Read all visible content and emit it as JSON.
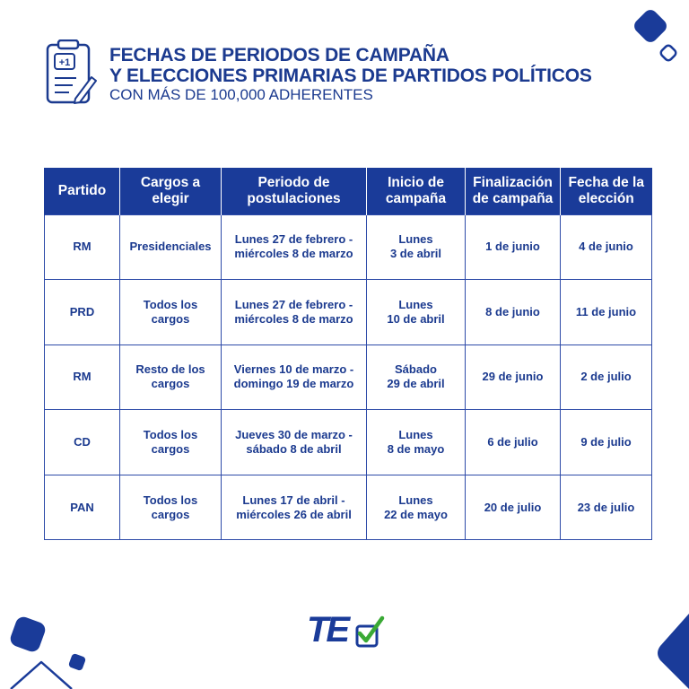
{
  "header": {
    "title_line1": "FECHAS DE PERIODOS DE CAMPAÑA",
    "title_line2": "Y ELECCIONES PRIMARIAS DE PARTIDOS POLÍTICOS",
    "subtitle": "CON MÁS DE 100,000 ADHERENTES",
    "icon_badge": "+1"
  },
  "table": {
    "headers": {
      "partido": "Partido",
      "cargos_1": "Cargos a",
      "cargos_2": "elegir",
      "periodo_1": "Periodo de",
      "periodo_2": "postulaciones",
      "inicio_1": "Inicio de",
      "inicio_2": "campaña",
      "fin_1": "Finalización",
      "fin_2": "de campaña",
      "fecha_1": "Fecha de la",
      "fecha_2": "elección"
    },
    "rows": [
      {
        "party": "RM",
        "cargos_1": "Presidenciales",
        "cargos_2": "",
        "periodo_1": "Lunes 27 de febrero -",
        "periodo_2": "miércoles 8 de marzo",
        "inicio_1": "Lunes",
        "inicio_2": "3 de abril",
        "fin": "1 de junio",
        "fecha": "4 de junio"
      },
      {
        "party": "PRD",
        "cargos_1": "Todos los",
        "cargos_2": "cargos",
        "periodo_1": "Lunes 27 de febrero -",
        "periodo_2": "miércoles 8 de marzo",
        "inicio_1": "Lunes",
        "inicio_2": "10 de abril",
        "fin": "8 de junio",
        "fecha": "11 de junio"
      },
      {
        "party": "RM",
        "cargos_1": "Resto de los",
        "cargos_2": "cargos",
        "periodo_1": "Viernes 10 de marzo -",
        "periodo_2": "domingo 19 de marzo",
        "inicio_1": "Sábado",
        "inicio_2": "29 de abril",
        "fin": "29 de junio",
        "fecha": "2 de julio"
      },
      {
        "party": "CD",
        "cargos_1": "Todos los",
        "cargos_2": "cargos",
        "periodo_1": "Jueves 30 de marzo -",
        "periodo_2": "sábado 8 de abril",
        "inicio_1": "Lunes",
        "inicio_2": "8 de mayo",
        "fin": "6 de julio",
        "fecha": "9 de julio"
      },
      {
        "party": "PAN",
        "cargos_1": "Todos los",
        "cargos_2": "cargos",
        "periodo_1": "Lunes 17 de abril -",
        "periodo_2": "miércoles 26 de abril",
        "inicio_1": "Lunes",
        "inicio_2": "22 de mayo",
        "fin": "20 de julio",
        "fecha": "23 de julio"
      }
    ]
  },
  "logo": {
    "text": "TE"
  },
  "colors": {
    "brand_blue": "#1a3b99",
    "text_blue": "#1b3a8f",
    "accent_green": "#3aa935"
  },
  "icons": [
    "clipboard-icon",
    "pencil-icon",
    "checkmark-icon"
  ]
}
